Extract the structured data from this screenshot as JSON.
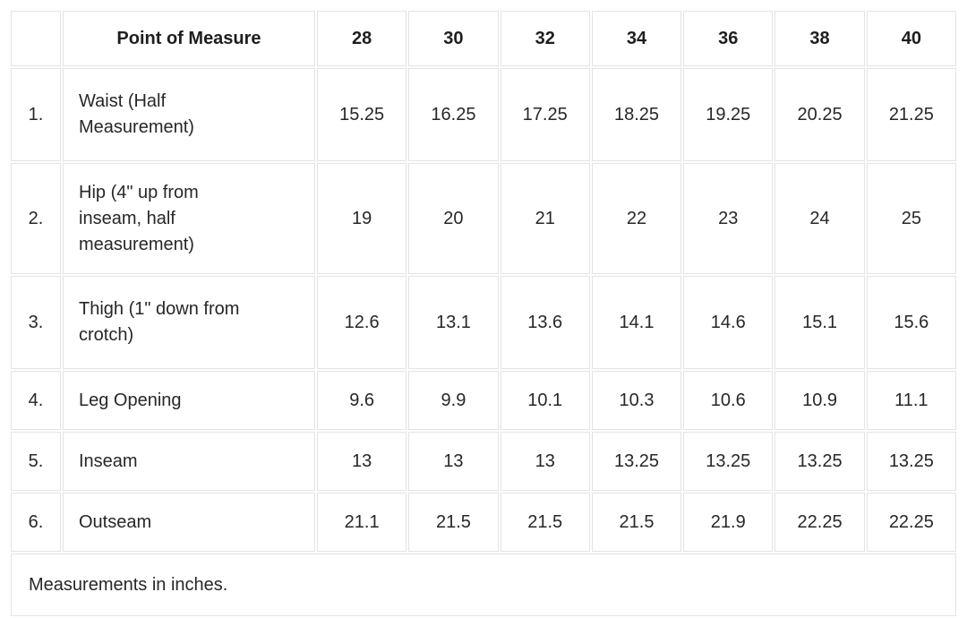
{
  "chart_data": {
    "type": "table",
    "title": "",
    "columns": [
      "",
      "Point of Measure",
      "28",
      "30",
      "32",
      "34",
      "36",
      "38",
      "40"
    ],
    "rows": [
      [
        "1.",
        "Waist (Half Measurement)",
        "15.25",
        "16.25",
        "17.25",
        "18.25",
        "19.25",
        "20.25",
        "21.25"
      ],
      [
        "2.",
        "Hip (4\" up from inseam, half measurement)",
        "19",
        "20",
        "21",
        "22",
        "23",
        "24",
        "25"
      ],
      [
        "3.",
        "Thigh (1\" down from crotch)",
        "12.6",
        "13.1",
        "13.6",
        "14.1",
        "14.6",
        "15.1",
        "15.6"
      ],
      [
        "4.",
        "Leg Opening",
        "9.6",
        "9.9",
        "10.1",
        "10.3",
        "10.6",
        "10.9",
        "11.1"
      ],
      [
        "5.",
        "Inseam",
        "13",
        "13",
        "13",
        "13.25",
        "13.25",
        "13.25",
        "13.25"
      ],
      [
        "6.",
        "Outseam",
        "21.1",
        "21.5",
        "21.5",
        "21.5",
        "21.9",
        "22.25",
        "22.25"
      ]
    ],
    "footnote": "Measurements in inches.",
    "units": "inches"
  },
  "colors": {
    "background": "#ffffff",
    "border": "#e3e3e3",
    "text": "#272727",
    "header_text": "#1e1e1e"
  }
}
